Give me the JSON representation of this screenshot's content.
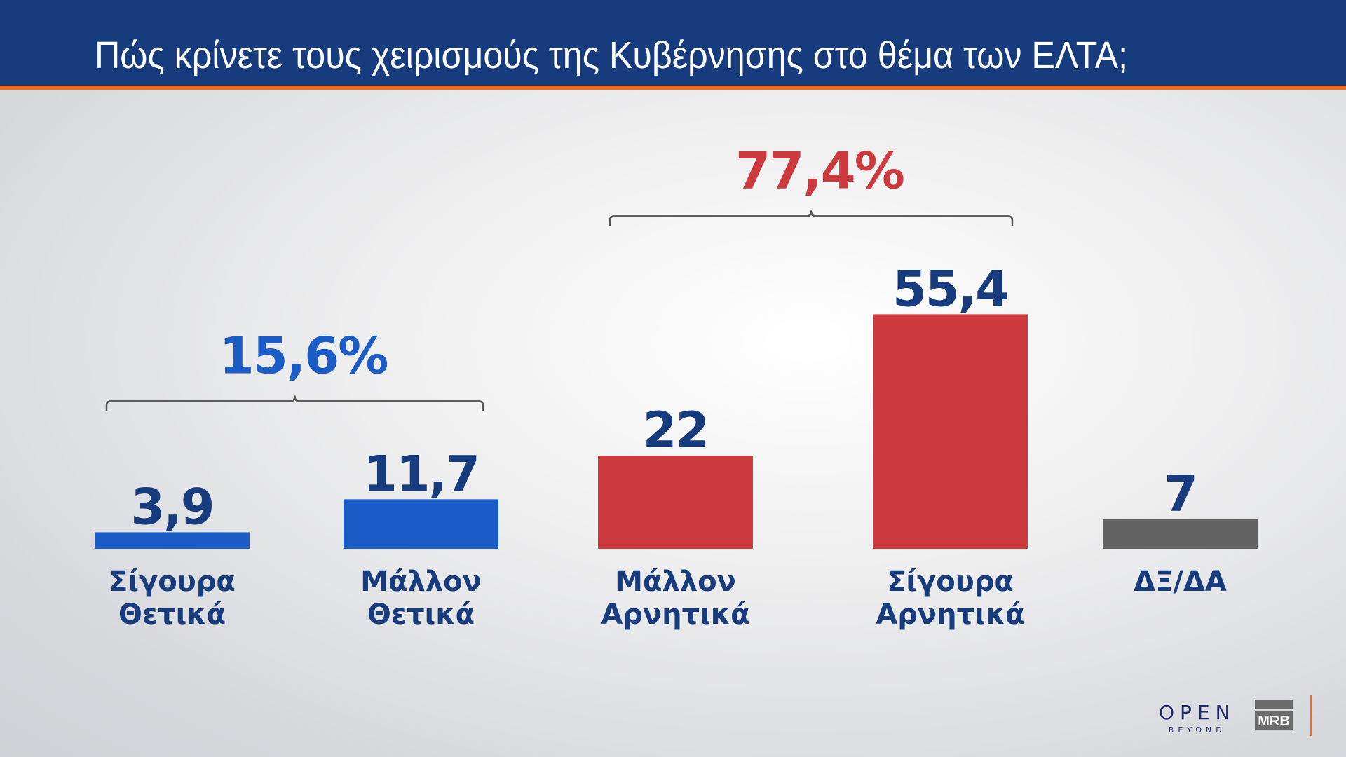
{
  "header": {
    "title": "Πώς κρίνετε τους χειρισμούς της Κυβέρνησης στο θέμα των ΕΛΤΑ;"
  },
  "chart_data": {
    "type": "bar",
    "categories": [
      [
        "Σίγουρα",
        "Θετικά"
      ],
      [
        "Μάλλον",
        "Θετικά"
      ],
      [
        "Μάλλον",
        "Αρνητικά"
      ],
      [
        "Σίγουρα",
        "Αρνητικά"
      ],
      [
        "ΔΞ/ΔΑ"
      ]
    ],
    "values": [
      3.9,
      11.7,
      22,
      55.4,
      7
    ],
    "value_labels": [
      "3,9",
      "11,7",
      "22",
      "55,4",
      "7"
    ],
    "bar_colors": [
      "#1b5cc6",
      "#1b5cc6",
      "#cc3a3d",
      "#cc3a3d",
      "#636363"
    ],
    "groups": [
      {
        "label": "15,6%",
        "value": 15.6,
        "members": [
          0,
          1
        ],
        "color": "#1b5cc6"
      },
      {
        "label": "77,4%",
        "value": 77.4,
        "members": [
          2,
          3
        ],
        "color": "#cc3a3d"
      }
    ],
    "title": "Πώς κρίνετε τους χειρισμούς της Κυβέρνησης στο θέμα των ΕΛΤΑ;",
    "grid": false,
    "xlabel": "",
    "ylabel": ""
  },
  "logos": {
    "open": "OPEN",
    "open_sub": "BEYOND",
    "mrb": "MRB"
  },
  "colors": {
    "header": "#173c7e",
    "accent": "#f26b21",
    "label": "#173c7e"
  }
}
